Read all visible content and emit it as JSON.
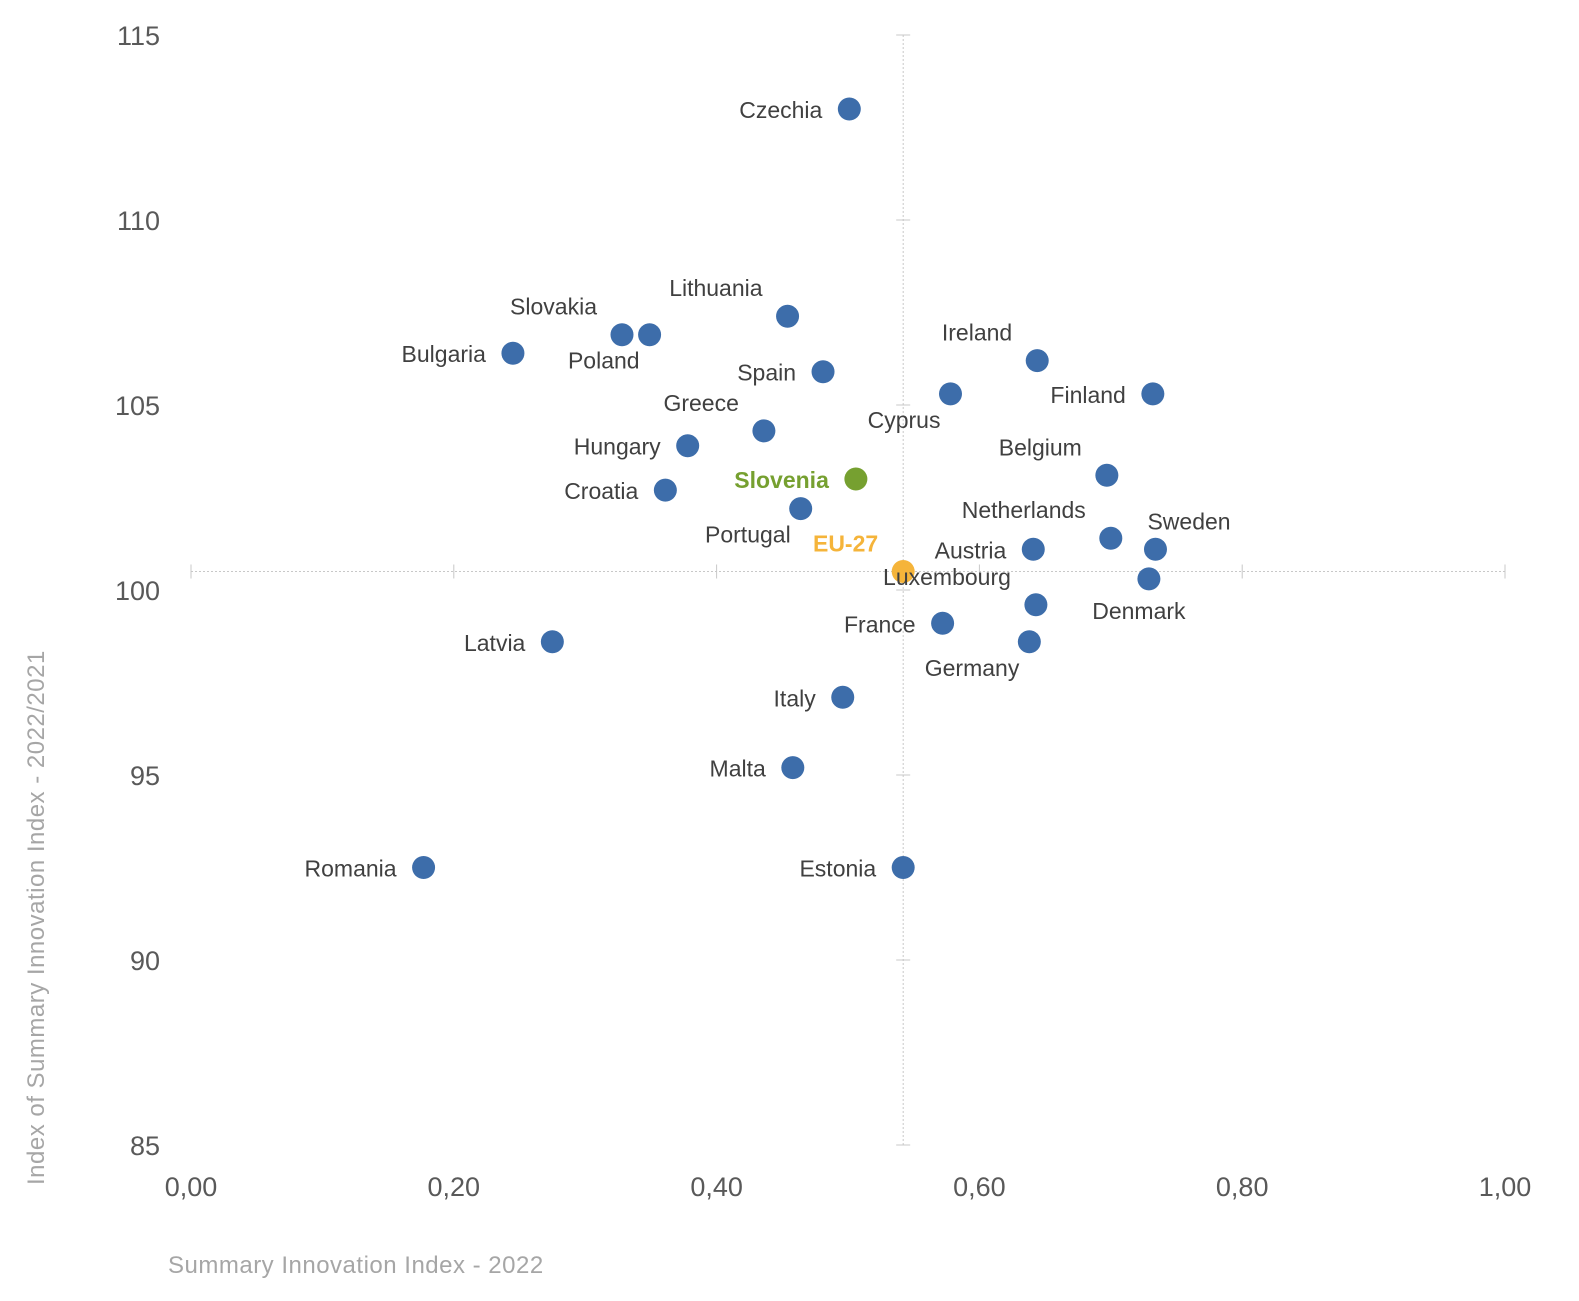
{
  "chart_data": {
    "type": "scatter",
    "xlabel": "Summary Innovation Index - 2022",
    "ylabel": "Index of Summary Innovation Index - 2022/2021",
    "xlim": [
      0,
      1
    ],
    "ylim": [
      85,
      115
    ],
    "xticks": [
      "0,00",
      "0,20",
      "0,40",
      "0,60",
      "0,80",
      "1,00"
    ],
    "yticks": [
      "85",
      "90",
      "95",
      "100",
      "105",
      "110",
      "115"
    ],
    "crosshair": {
      "x": 0.542,
      "y": 100.5
    },
    "grid": false,
    "colors": {
      "default": "#3d6daa",
      "slovenia": "#76a030",
      "eu27": "#f5b43a",
      "axis": "#c8c8c8"
    },
    "points": [
      {
        "name": "Czechia",
        "x": 0.501,
        "y": 113.0,
        "pos": "left"
      },
      {
        "name": "Lithuania",
        "x": 0.454,
        "y": 107.4,
        "pos": "above-left"
      },
      {
        "name": "Slovakia",
        "x": 0.328,
        "y": 106.9,
        "pos": "above-left"
      },
      {
        "name": "Poland",
        "x": 0.349,
        "y": 106.9,
        "pos": "below-left"
      },
      {
        "name": "Bulgaria",
        "x": 0.245,
        "y": 106.4,
        "pos": "left"
      },
      {
        "name": "Ireland",
        "x": 0.644,
        "y": 106.2,
        "pos": "above-left"
      },
      {
        "name": "Spain",
        "x": 0.481,
        "y": 105.9,
        "pos": "left"
      },
      {
        "name": "Cyprus",
        "x": 0.578,
        "y": 105.3,
        "pos": "below-left"
      },
      {
        "name": "Finland",
        "x": 0.732,
        "y": 105.3,
        "pos": "left"
      },
      {
        "name": "Greece",
        "x": 0.436,
        "y": 104.3,
        "pos": "above-left"
      },
      {
        "name": "Hungary",
        "x": 0.378,
        "y": 103.9,
        "pos": "left"
      },
      {
        "name": "Slovenia",
        "x": 0.506,
        "y": 103.0,
        "pos": "left",
        "highlight": "slovenia"
      },
      {
        "name": "Belgium",
        "x": 0.697,
        "y": 103.1,
        "pos": "above-left"
      },
      {
        "name": "Croatia",
        "x": 0.361,
        "y": 102.7,
        "pos": "left"
      },
      {
        "name": "Portugal",
        "x": 0.464,
        "y": 102.2,
        "pos": "below-left"
      },
      {
        "name": "Netherlands",
        "x": 0.7,
        "y": 101.4,
        "pos": "above-left"
      },
      {
        "name": "Sweden",
        "x": 0.734,
        "y": 101.1,
        "pos": "above-right"
      },
      {
        "name": "Austria",
        "x": 0.641,
        "y": 101.1,
        "pos": "left"
      },
      {
        "name": "EU-27",
        "x": 0.542,
        "y": 100.5,
        "pos": "above-left",
        "highlight": "eu27"
      },
      {
        "name": "Denmark",
        "x": 0.729,
        "y": 100.3,
        "pos": "below"
      },
      {
        "name": "Luxembourg",
        "x": 0.643,
        "y": 99.6,
        "pos": "above-left"
      },
      {
        "name": "France",
        "x": 0.572,
        "y": 99.1,
        "pos": "left"
      },
      {
        "name": "Germany",
        "x": 0.638,
        "y": 98.6,
        "pos": "below-left"
      },
      {
        "name": "Latvia",
        "x": 0.275,
        "y": 98.6,
        "pos": "left"
      },
      {
        "name": "Italy",
        "x": 0.496,
        "y": 97.1,
        "pos": "left"
      },
      {
        "name": "Malta",
        "x": 0.458,
        "y": 95.2,
        "pos": "left"
      },
      {
        "name": "Romania",
        "x": 0.177,
        "y": 92.5,
        "pos": "left"
      },
      {
        "name": "Estonia",
        "x": 0.542,
        "y": 92.5,
        "pos": "left"
      }
    ]
  }
}
